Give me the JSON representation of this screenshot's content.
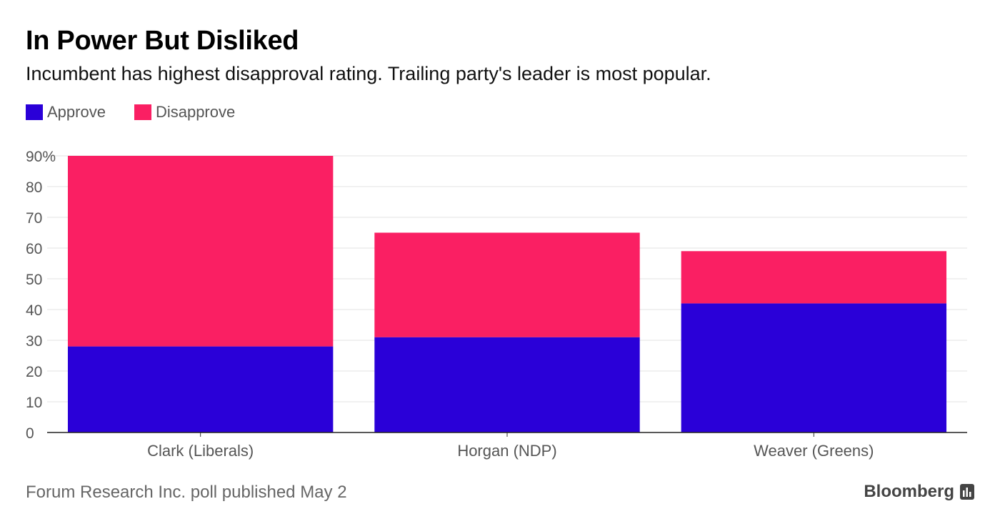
{
  "chart_data": {
    "type": "bar",
    "stacked": true,
    "title": "In Power But Disliked",
    "subtitle": "Incumbent has highest disapproval rating. Trailing party's leader is most popular.",
    "categories": [
      "Clark (Liberals)",
      "Horgan (NDP)",
      "Weaver (Greens)"
    ],
    "series": [
      {
        "name": "Approve",
        "color": "#2a00d8",
        "values": [
          28,
          31,
          42
        ]
      },
      {
        "name": "Disapprove",
        "color": "#fa1f63",
        "values": [
          62,
          34,
          17
        ]
      }
    ],
    "ylim": [
      0,
      90
    ],
    "yticks": [
      "0",
      "10",
      "20",
      "30",
      "40",
      "50",
      "60",
      "70",
      "80",
      "90%"
    ],
    "grid": true,
    "legend_position": "top-left"
  },
  "footer": {
    "source": "Forum Research Inc. poll published May 2",
    "brand": "Bloomberg"
  }
}
